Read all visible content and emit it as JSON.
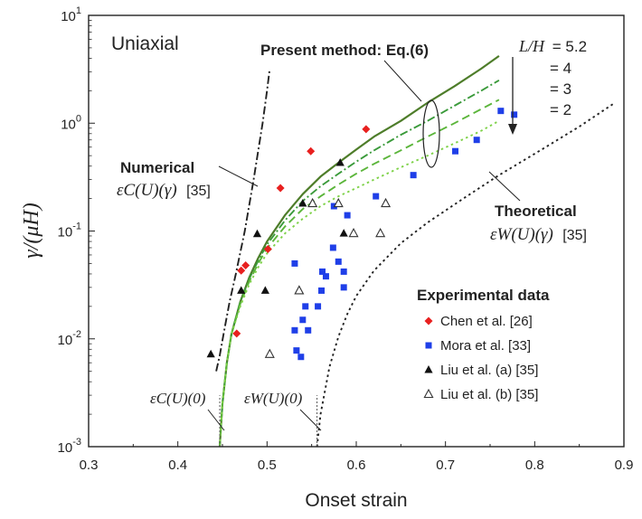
{
  "chart_data": {
    "type": "scatter",
    "title": "",
    "panel_label": "Uniaxial",
    "xlabel": "Onset strain",
    "ylabel": "γ/(μH)",
    "xlim": [
      0.3,
      0.9
    ],
    "ylim": [
      0.001,
      10
    ],
    "yscale": "log",
    "x_ticks": [
      "0.3",
      "0.4",
      "0.5",
      "0.6",
      "0.7",
      "0.8",
      "0.9"
    ],
    "y_ticks": [
      {
        "base": "10",
        "exp": "1",
        "value": 10
      },
      {
        "base": "10",
        "exp": "0",
        "value": 1
      },
      {
        "base": "10",
        "exp": "-1",
        "value": 0.1
      },
      {
        "base": "10",
        "exp": "-2",
        "value": 0.01
      },
      {
        "base": "10",
        "exp": "-3",
        "value": 0.001
      }
    ],
    "grid": false,
    "annotations": {
      "present_method": "Present method: Eq.(6)",
      "lh_prefix": "L/H",
      "lh_values": [
        "= 5.2",
        "= 4",
        "= 3",
        "= 2"
      ],
      "numerical_title": "Numerical",
      "numerical_symbol": "εC(U)(γ)",
      "numerical_ref": "[35]",
      "theoretical_title": "Theoretical",
      "theoretical_symbol": "εW(U)(γ)",
      "theoretical_ref": "[35]",
      "ec0": "εC(U)(0)",
      "ew0": "εW(U)(0)"
    },
    "legend_title": "Experimental data",
    "legend_position": "bottom-right",
    "lines": [
      {
        "name": "L/H = 5.2",
        "style": "solid",
        "color": "#4e7d2a",
        "x": [
          0.447,
          0.45,
          0.455,
          0.46,
          0.47,
          0.48,
          0.49,
          0.5,
          0.52,
          0.54,
          0.56,
          0.58,
          0.6,
          0.62,
          0.65,
          0.68,
          0.71,
          0.74,
          0.76
        ],
        "y": [
          0.001,
          0.0025,
          0.006,
          0.011,
          0.022,
          0.037,
          0.056,
          0.08,
          0.14,
          0.22,
          0.32,
          0.43,
          0.57,
          0.75,
          1.05,
          1.55,
          2.2,
          3.2,
          4.2
        ]
      },
      {
        "name": "L/H = 4",
        "style": "dashdot",
        "color": "#3a9a3a",
        "x": [
          0.447,
          0.45,
          0.455,
          0.46,
          0.47,
          0.48,
          0.49,
          0.5,
          0.52,
          0.54,
          0.56,
          0.58,
          0.6,
          0.62,
          0.65,
          0.68,
          0.71,
          0.74,
          0.76
        ],
        "y": [
          0.001,
          0.0025,
          0.006,
          0.011,
          0.022,
          0.036,
          0.053,
          0.075,
          0.125,
          0.19,
          0.26,
          0.34,
          0.44,
          0.56,
          0.78,
          1.05,
          1.45,
          2.0,
          2.5
        ]
      },
      {
        "name": "L/H = 3",
        "style": "dashed",
        "color": "#5bb53a",
        "x": [
          0.447,
          0.45,
          0.455,
          0.46,
          0.47,
          0.48,
          0.49,
          0.5,
          0.52,
          0.54,
          0.56,
          0.58,
          0.6,
          0.62,
          0.65,
          0.68,
          0.71,
          0.74,
          0.76
        ],
        "y": [
          0.001,
          0.0025,
          0.006,
          0.011,
          0.021,
          0.034,
          0.05,
          0.069,
          0.11,
          0.16,
          0.21,
          0.27,
          0.34,
          0.42,
          0.56,
          0.75,
          1.0,
          1.35,
          1.65
        ]
      },
      {
        "name": "L/H = 2",
        "style": "dotted",
        "color": "#7fd24a",
        "x": [
          0.447,
          0.45,
          0.455,
          0.46,
          0.47,
          0.48,
          0.49,
          0.5,
          0.52,
          0.54,
          0.56,
          0.58,
          0.6,
          0.62,
          0.65,
          0.68,
          0.71,
          0.74,
          0.76
        ],
        "y": [
          0.001,
          0.0025,
          0.006,
          0.011,
          0.02,
          0.032,
          0.046,
          0.062,
          0.095,
          0.13,
          0.17,
          0.21,
          0.25,
          0.3,
          0.39,
          0.5,
          0.65,
          0.85,
          1.05
        ]
      },
      {
        "name": "Numerical",
        "style": "dashdot",
        "color": "#222222",
        "x": [
          0.443,
          0.447,
          0.452,
          0.458,
          0.465,
          0.475,
          0.485,
          0.495,
          0.5,
          0.503
        ],
        "y": [
          0.005,
          0.007,
          0.012,
          0.022,
          0.04,
          0.1,
          0.3,
          1.0,
          2.0,
          3.2
        ]
      },
      {
        "name": "Theoretical",
        "style": "dotted",
        "color": "#222222",
        "x": [
          0.556,
          0.56,
          0.57,
          0.58,
          0.59,
          0.6,
          0.62,
          0.65,
          0.68,
          0.72,
          0.76,
          0.8,
          0.85,
          0.89
        ],
        "y": [
          0.001,
          0.002,
          0.0055,
          0.0105,
          0.017,
          0.025,
          0.043,
          0.077,
          0.12,
          0.2,
          0.33,
          0.52,
          0.93,
          1.55
        ]
      }
    ],
    "series": [
      {
        "name": "Chen et al. [26]",
        "marker": "diamond",
        "color": "#e8201f",
        "points": [
          [
            0.466,
            0.0112
          ],
          [
            0.471,
            0.043
          ],
          [
            0.476,
            0.048
          ],
          [
            0.501,
            0.068
          ],
          [
            0.515,
            0.25
          ],
          [
            0.549,
            0.55
          ],
          [
            0.611,
            0.88
          ]
        ]
      },
      {
        "name": "Mora et al. [33]",
        "marker": "square",
        "color": "#1f3fe8",
        "points": [
          [
            0.531,
            0.05
          ],
          [
            0.54,
            0.015
          ],
          [
            0.543,
            0.02
          ],
          [
            0.546,
            0.012
          ],
          [
            0.531,
            0.012
          ],
          [
            0.533,
            0.0078
          ],
          [
            0.538,
            0.0068
          ],
          [
            0.562,
            0.042
          ],
          [
            0.566,
            0.038
          ],
          [
            0.574,
            0.07
          ],
          [
            0.58,
            0.052
          ],
          [
            0.586,
            0.042
          ],
          [
            0.59,
            0.14
          ],
          [
            0.586,
            0.03
          ],
          [
            0.557,
            0.02
          ],
          [
            0.561,
            0.028
          ],
          [
            0.575,
            0.17
          ],
          [
            0.622,
            0.21
          ],
          [
            0.664,
            0.33
          ],
          [
            0.711,
            0.55
          ],
          [
            0.735,
            0.7
          ],
          [
            0.762,
            1.3
          ],
          [
            0.777,
            1.2
          ]
        ]
      },
      {
        "name": "Liu et al. (a) [35]",
        "marker": "triangle",
        "color": "#111111",
        "points": [
          [
            0.437,
            0.0072
          ],
          [
            0.471,
            0.028
          ],
          [
            0.489,
            0.094
          ],
          [
            0.498,
            0.028
          ],
          [
            0.54,
            0.18
          ],
          [
            0.582,
            0.43
          ],
          [
            0.586,
            0.095
          ]
        ]
      },
      {
        "name": "Liu et al. (b) [35]",
        "marker": "triangle-open",
        "color": "#333333",
        "points": [
          [
            0.503,
            0.0072
          ],
          [
            0.536,
            0.028
          ],
          [
            0.551,
            0.18
          ],
          [
            0.58,
            0.18
          ],
          [
            0.597,
            0.095
          ],
          [
            0.627,
            0.095
          ],
          [
            0.633,
            0.18
          ]
        ]
      }
    ]
  }
}
